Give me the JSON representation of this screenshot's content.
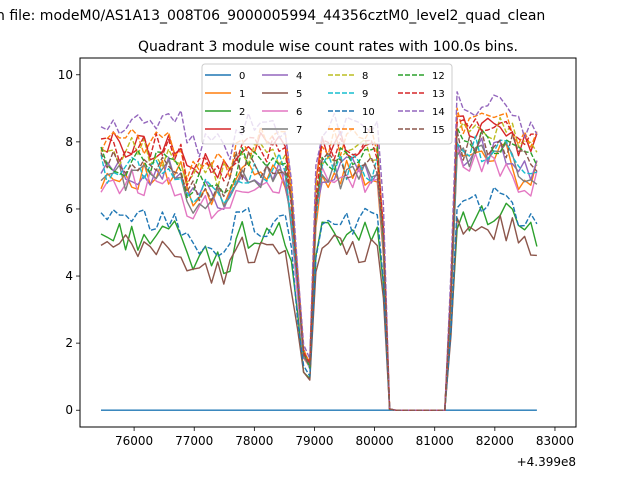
{
  "figure": {
    "suptitle": "n file: modeM0/AS1A13_008T06_9000005994_44356cztM0_level2_quad_clean",
    "title": "Quadrant 3 module wise count rates with 100.0s bins.",
    "x_offset_label": "+4.399e8"
  },
  "chart_data": {
    "type": "line",
    "title": "Quadrant 3 module wise count rates with 100.0s bins.",
    "xlabel": "",
    "ylabel": "",
    "xlim": [
      75100,
      83350
    ],
    "ylim": [
      -0.5,
      10.5
    ],
    "x_offset": 439900000,
    "xticks": [
      76000,
      77000,
      78000,
      79000,
      80000,
      81000,
      82000,
      83000
    ],
    "xtick_labels": [
      "76000",
      "77000",
      "78000",
      "79000",
      "80000",
      "81000",
      "82000",
      "83000"
    ],
    "yticks": [
      0,
      2,
      4,
      6,
      8,
      10
    ],
    "ytick_labels": [
      "0",
      "2",
      "4",
      "6",
      "8",
      "10"
    ],
    "grid": false,
    "legend": {
      "position": "top-center",
      "columns": 4
    },
    "x_range": [
      75450,
      82700
    ],
    "n_points": 72,
    "segment_boundaries": {
      "drop_start": 78550,
      "drop_min": 78900,
      "recover": 79050,
      "off_start": 80100,
      "off_end": 81200,
      "recover2": 81350
    },
    "series": [
      {
        "name": "0",
        "color": "#1f77b4",
        "dash": "solid",
        "level": 0.0
      },
      {
        "name": "1",
        "color": "#ff7f0e",
        "dash": "solid",
        "level": 7.0
      },
      {
        "name": "2",
        "color": "#2ca02c",
        "dash": "solid",
        "level": 5.2
      },
      {
        "name": "3",
        "color": "#d62728",
        "dash": "solid",
        "level": 7.9
      },
      {
        "name": "4",
        "color": "#9467bd",
        "dash": "solid",
        "level": 7.1
      },
      {
        "name": "5",
        "color": "#8c564b",
        "dash": "solid",
        "level": 4.8
      },
      {
        "name": "6",
        "color": "#e377c2",
        "dash": "solid",
        "level": 6.8
      },
      {
        "name": "7",
        "color": "#7f7f7f",
        "dash": "solid",
        "level": 7.0
      },
      {
        "name": "8",
        "color": "#bcbd22",
        "dash": "dashed",
        "level": 7.7
      },
      {
        "name": "9",
        "color": "#17becf",
        "dash": "dashed",
        "level": 7.2
      },
      {
        "name": "10",
        "color": "#1f77b4",
        "dash": "dashed",
        "level": 5.6
      },
      {
        "name": "11",
        "color": "#ff7f0e",
        "dash": "dashed",
        "level": 8.0
      },
      {
        "name": "12",
        "color": "#2ca02c",
        "dash": "dashed",
        "level": 7.4
      },
      {
        "name": "13",
        "color": "#d62728",
        "dash": "dashed",
        "level": 7.8
      },
      {
        "name": "14",
        "color": "#9467bd",
        "dash": "dashed",
        "level": 8.5
      },
      {
        "name": "15",
        "color": "#8c564b",
        "dash": "dashed",
        "level": 7.3
      }
    ]
  }
}
